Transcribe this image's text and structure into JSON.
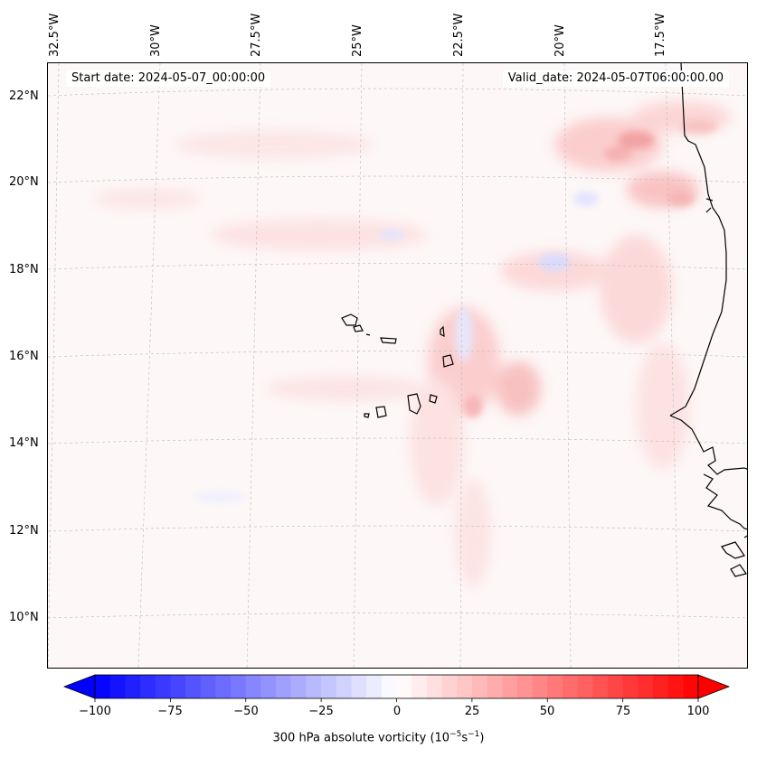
{
  "map": {
    "start_date": "Start date: 2024-05-07_00:00:00",
    "valid_date": "Valid_date: 2024-05-07T06:00:00.00",
    "lat_labels": [
      "22°N",
      "20°N",
      "18°N",
      "16°N",
      "14°N",
      "12°N",
      "10°N"
    ],
    "lon_labels": [
      "32.5°W",
      "30°W",
      "27.5°W",
      "25°W",
      "22.5°W",
      "20°W",
      "17.5°W"
    ],
    "field": "300 hPa absolute vorticity",
    "coastline_color": "#000000",
    "gridline_color": "#bbbbbb"
  },
  "colorbar": {
    "label_main": "300 hPa absolute vorticity (10",
    "label_exp1": "−5",
    "label_mid": "s",
    "label_exp2": "−1",
    "label_end": ")",
    "ticks": [
      "−100",
      "−75",
      "−50",
      "−25",
      "0",
      "25",
      "50",
      "75",
      "100"
    ],
    "min": -100,
    "max": 100,
    "cmap": "bwr",
    "low_color": "#0000ff",
    "mid_color": "#ffffff",
    "high_color": "#ff0000"
  }
}
